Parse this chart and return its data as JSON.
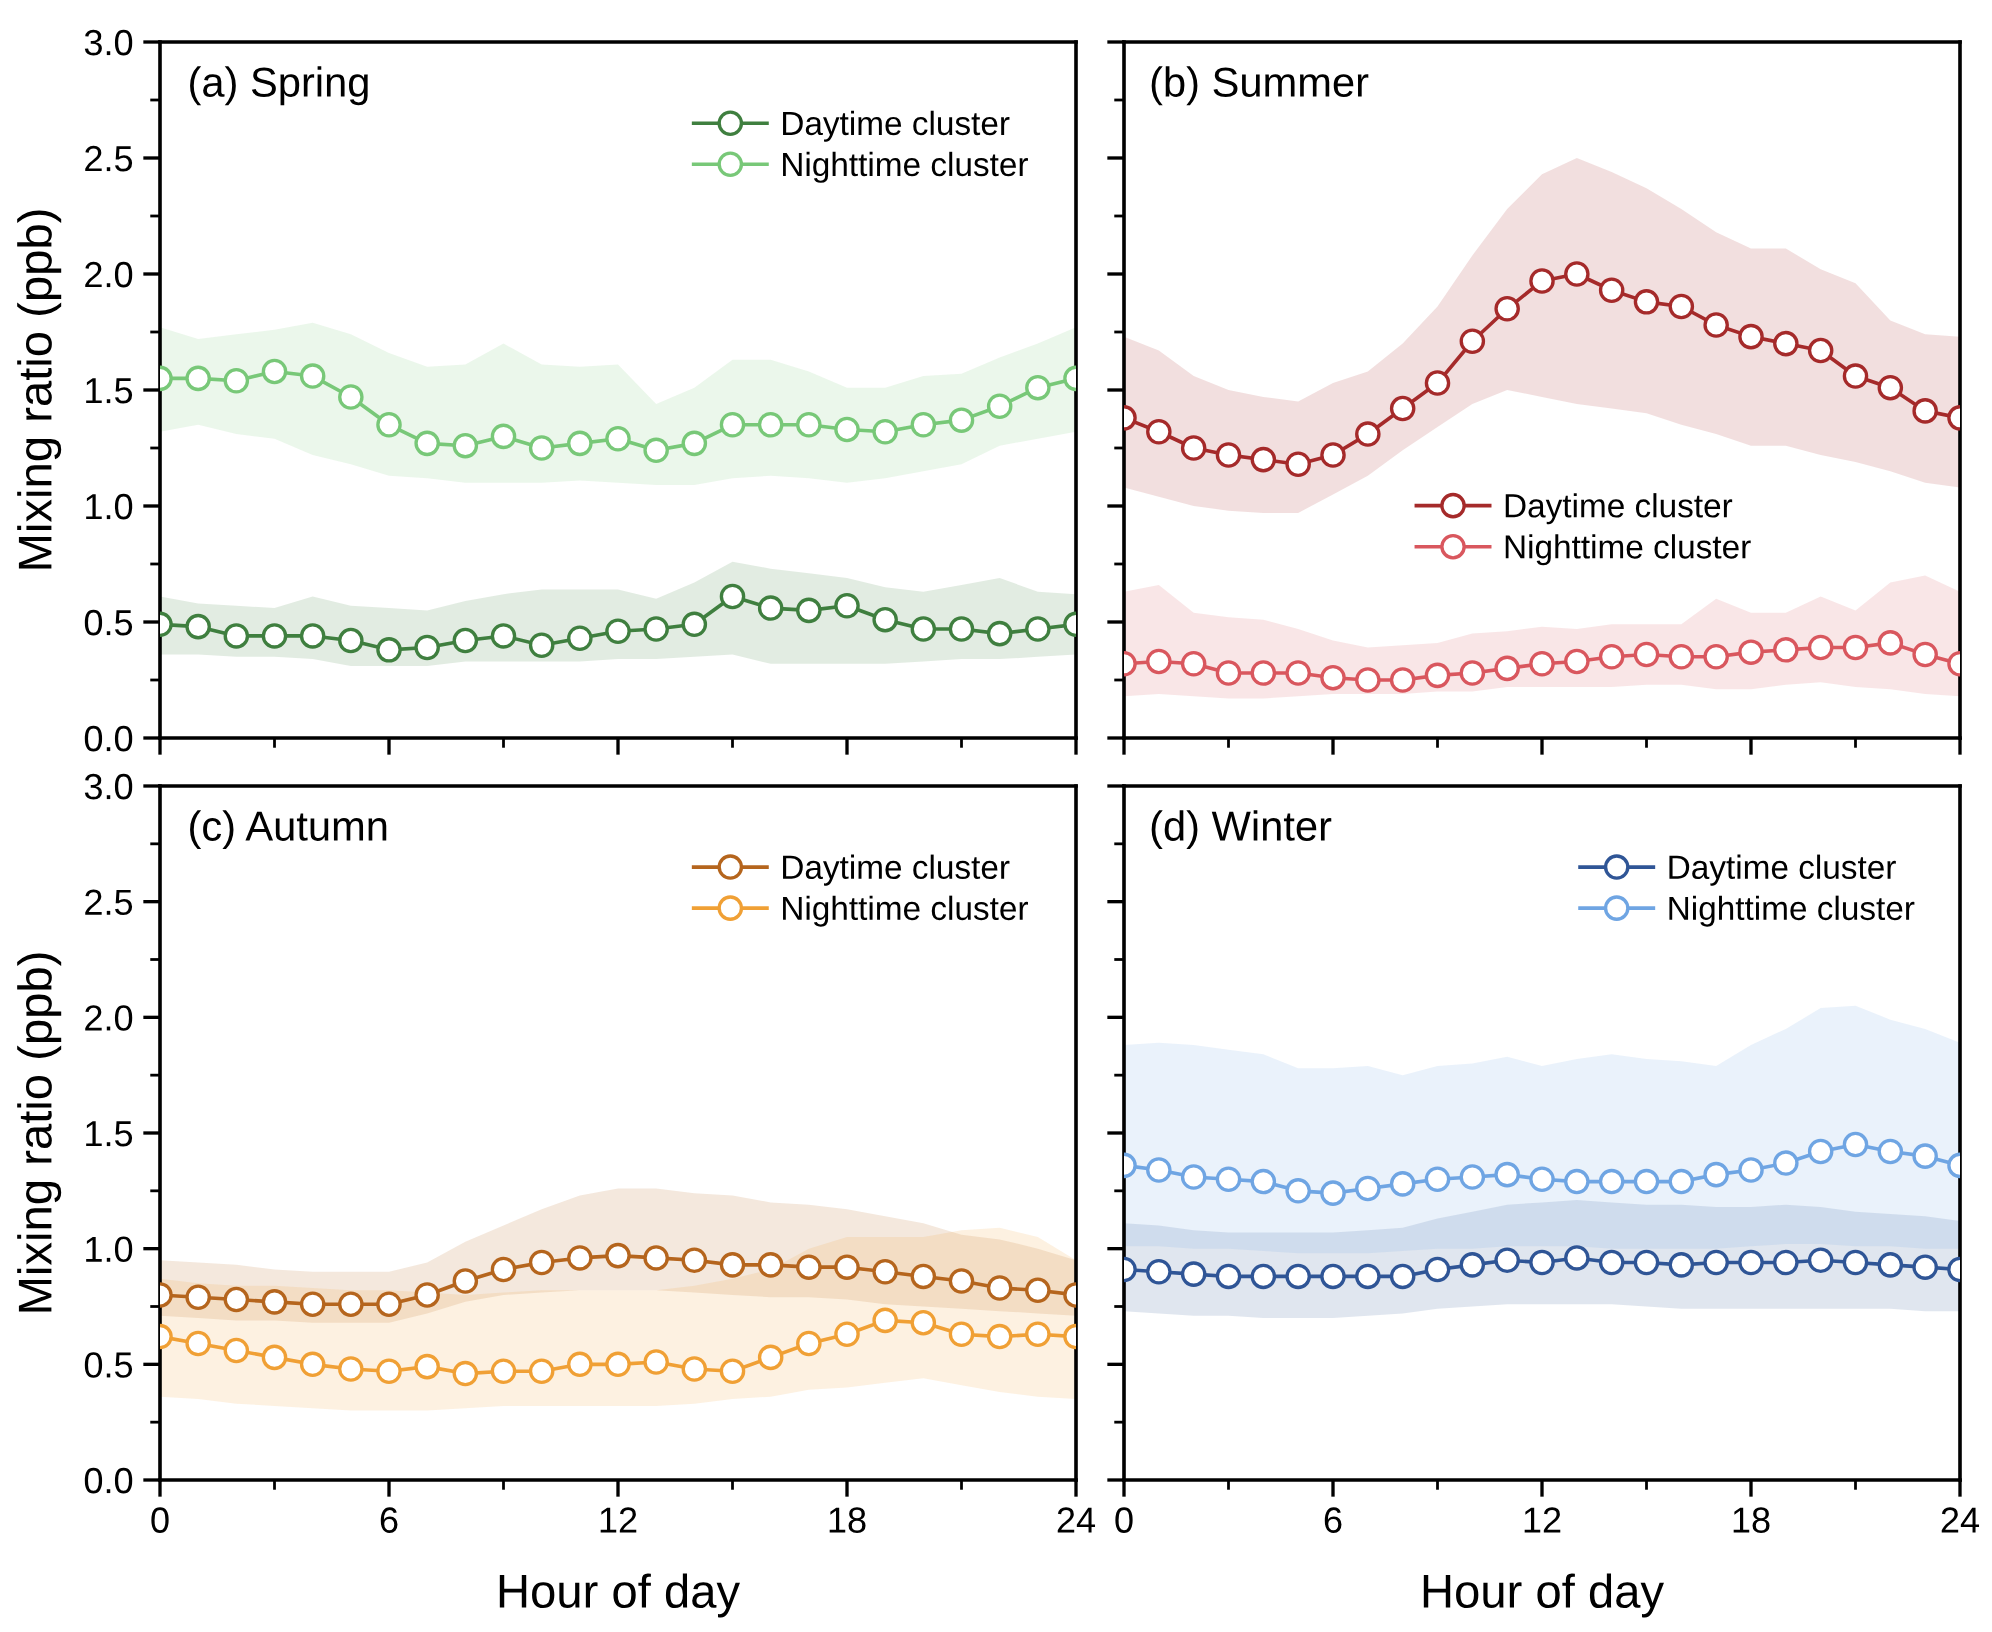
{
  "chart_data": [
    {
      "type": "line",
      "title": "(a) Spring",
      "ylabel": "Mixing ratio (ppb)",
      "xlim": [
        0,
        24
      ],
      "xticks": [
        0,
        6,
        12,
        18,
        24
      ],
      "ylim": [
        0,
        3
      ],
      "yticks": [
        {
          "value": 0,
          "label": "0.0"
        },
        {
          "value": 0.5,
          "label": "0.5"
        },
        {
          "value": 1,
          "label": "1.0"
        },
        {
          "value": 1.5,
          "label": "1.5"
        },
        {
          "value": 2,
          "label": "2.0"
        },
        {
          "value": 2.5,
          "label": "2.5"
        },
        {
          "value": 3,
          "label": "3.0"
        }
      ],
      "tick_labels": "y",
      "marker": "circle",
      "legend": "top right",
      "x": [
        0,
        1,
        2,
        3,
        4,
        5,
        6,
        7,
        8,
        9,
        10,
        11,
        12,
        13,
        14,
        15,
        16,
        17,
        18,
        19,
        20,
        21,
        22,
        23,
        24
      ],
      "series": [
        {
          "name": "Daytime cluster",
          "color": "#3f7f3f",
          "values": [
            0.49,
            0.48,
            0.44,
            0.44,
            0.44,
            0.42,
            0.38,
            0.39,
            0.42,
            0.44,
            0.4,
            0.43,
            0.46,
            0.47,
            0.49,
            0.61,
            0.56,
            0.55,
            0.57,
            0.51,
            0.47,
            0.47,
            0.45,
            0.47,
            0.49
          ],
          "upper": [
            0.61,
            0.58,
            0.57,
            0.56,
            0.61,
            0.57,
            0.56,
            0.55,
            0.59,
            0.62,
            0.64,
            0.64,
            0.64,
            0.6,
            0.67,
            0.76,
            0.73,
            0.71,
            0.69,
            0.65,
            0.63,
            0.66,
            0.69,
            0.63,
            0.62
          ],
          "lower": [
            0.36,
            0.36,
            0.35,
            0.35,
            0.34,
            0.31,
            0.31,
            0.31,
            0.33,
            0.33,
            0.33,
            0.33,
            0.34,
            0.34,
            0.35,
            0.36,
            0.32,
            0.32,
            0.32,
            0.32,
            0.33,
            0.34,
            0.34,
            0.35,
            0.36
          ]
        },
        {
          "name": "Nighttime cluster",
          "color": "#78c878",
          "values": [
            1.55,
            1.55,
            1.54,
            1.58,
            1.56,
            1.47,
            1.35,
            1.27,
            1.26,
            1.3,
            1.25,
            1.27,
            1.29,
            1.24,
            1.27,
            1.35,
            1.35,
            1.35,
            1.33,
            1.32,
            1.35,
            1.37,
            1.43,
            1.51,
            1.55
          ],
          "upper": [
            1.77,
            1.72,
            1.74,
            1.76,
            1.79,
            1.74,
            1.66,
            1.6,
            1.61,
            1.7,
            1.61,
            1.6,
            1.61,
            1.44,
            1.51,
            1.63,
            1.63,
            1.58,
            1.51,
            1.51,
            1.56,
            1.57,
            1.64,
            1.7,
            1.77
          ],
          "lower": [
            1.32,
            1.35,
            1.31,
            1.29,
            1.22,
            1.18,
            1.13,
            1.12,
            1.1,
            1.1,
            1.1,
            1.11,
            1.1,
            1.09,
            1.09,
            1.12,
            1.13,
            1.12,
            1.1,
            1.12,
            1.15,
            1.18,
            1.26,
            1.29,
            1.32
          ]
        }
      ]
    },
    {
      "type": "line",
      "title": "(b) Summer",
      "xlim": [
        0,
        24
      ],
      "xticks": [
        0,
        6,
        12,
        18,
        24
      ],
      "ylim": [
        0,
        3
      ],
      "yticks": [
        0,
        0.5,
        1,
        1.5,
        2,
        2.5,
        3
      ],
      "tick_labels": false,
      "marker": "circle",
      "legend": "center",
      "x": [
        0,
        1,
        2,
        3,
        4,
        5,
        6,
        7,
        8,
        9,
        10,
        11,
        12,
        13,
        14,
        15,
        16,
        17,
        18,
        19,
        20,
        21,
        22,
        23,
        24
      ],
      "series": [
        {
          "name": "Daytime cluster",
          "color": "#a52a2a",
          "values": [
            1.38,
            1.32,
            1.25,
            1.22,
            1.2,
            1.18,
            1.22,
            1.31,
            1.42,
            1.53,
            1.71,
            1.85,
            1.97,
            2.0,
            1.93,
            1.88,
            1.86,
            1.78,
            1.73,
            1.7,
            1.67,
            1.56,
            1.51,
            1.41,
            1.38
          ],
          "upper": [
            1.73,
            1.67,
            1.56,
            1.5,
            1.47,
            1.45,
            1.53,
            1.58,
            1.7,
            1.86,
            2.08,
            2.28,
            2.43,
            2.5,
            2.44,
            2.37,
            2.28,
            2.18,
            2.11,
            2.11,
            2.02,
            1.96,
            1.8,
            1.74,
            1.73
          ],
          "lower": [
            1.08,
            1.04,
            1.0,
            0.98,
            0.97,
            0.97,
            1.05,
            1.13,
            1.24,
            1.34,
            1.44,
            1.5,
            1.47,
            1.44,
            1.42,
            1.4,
            1.35,
            1.31,
            1.26,
            1.26,
            1.22,
            1.19,
            1.15,
            1.1,
            1.08
          ]
        },
        {
          "name": "Nighttime cluster",
          "color": "#d9575e",
          "values": [
            0.32,
            0.33,
            0.32,
            0.28,
            0.28,
            0.28,
            0.26,
            0.25,
            0.25,
            0.27,
            0.28,
            0.3,
            0.32,
            0.33,
            0.35,
            0.36,
            0.35,
            0.35,
            0.37,
            0.38,
            0.39,
            0.39,
            0.41,
            0.36,
            0.32
          ],
          "upper": [
            0.63,
            0.66,
            0.54,
            0.52,
            0.51,
            0.47,
            0.42,
            0.39,
            0.4,
            0.41,
            0.45,
            0.46,
            0.48,
            0.47,
            0.49,
            0.49,
            0.49,
            0.6,
            0.54,
            0.54,
            0.61,
            0.55,
            0.67,
            0.7,
            0.63
          ],
          "lower": [
            0.18,
            0.19,
            0.18,
            0.17,
            0.17,
            0.18,
            0.19,
            0.19,
            0.19,
            0.2,
            0.2,
            0.22,
            0.22,
            0.22,
            0.22,
            0.23,
            0.23,
            0.21,
            0.21,
            0.23,
            0.24,
            0.22,
            0.21,
            0.19,
            0.18
          ]
        }
      ]
    },
    {
      "type": "line",
      "title": "(c) Autumn",
      "xlabel": "Hour of day",
      "ylabel": "Mixing ratio (ppb)",
      "xlim": [
        0,
        24
      ],
      "xticks": [
        0,
        6,
        12,
        18,
        24
      ],
      "ylim": [
        0,
        3
      ],
      "yticks": [
        {
          "value": 0,
          "label": "0.0"
        },
        {
          "value": 0.5,
          "label": "0.5"
        },
        {
          "value": 1,
          "label": "1.0"
        },
        {
          "value": 1.5,
          "label": "1.5"
        },
        {
          "value": 2,
          "label": "2.0"
        },
        {
          "value": 2.5,
          "label": "2.5"
        },
        {
          "value": 3,
          "label": "3.0"
        }
      ],
      "marker": "circle",
      "legend": "top right",
      "x": [
        0,
        1,
        2,
        3,
        4,
        5,
        6,
        7,
        8,
        9,
        10,
        11,
        12,
        13,
        14,
        15,
        16,
        17,
        18,
        19,
        20,
        21,
        22,
        23,
        24
      ],
      "series": [
        {
          "name": "Daytime cluster",
          "color": "#b5651d",
          "values": [
            0.8,
            0.79,
            0.78,
            0.77,
            0.76,
            0.76,
            0.76,
            0.8,
            0.86,
            0.91,
            0.94,
            0.96,
            0.97,
            0.96,
            0.95,
            0.93,
            0.93,
            0.92,
            0.92,
            0.9,
            0.88,
            0.86,
            0.83,
            0.82,
            0.8
          ],
          "upper": [
            0.95,
            0.94,
            0.93,
            0.91,
            0.9,
            0.9,
            0.9,
            0.94,
            1.03,
            1.1,
            1.17,
            1.23,
            1.26,
            1.26,
            1.24,
            1.23,
            1.2,
            1.19,
            1.17,
            1.14,
            1.11,
            1.06,
            1.04,
            1.0,
            0.95
          ],
          "lower": [
            0.71,
            0.7,
            0.69,
            0.69,
            0.68,
            0.68,
            0.68,
            0.72,
            0.77,
            0.8,
            0.81,
            0.82,
            0.82,
            0.82,
            0.81,
            0.8,
            0.79,
            0.79,
            0.78,
            0.76,
            0.75,
            0.74,
            0.73,
            0.72,
            0.71
          ]
        },
        {
          "name": "Nighttime cluster",
          "color": "#f0a035",
          "values": [
            0.62,
            0.59,
            0.56,
            0.53,
            0.5,
            0.48,
            0.47,
            0.49,
            0.46,
            0.47,
            0.47,
            0.5,
            0.5,
            0.51,
            0.48,
            0.47,
            0.53,
            0.59,
            0.63,
            0.69,
            0.68,
            0.63,
            0.62,
            0.63,
            0.62
          ],
          "upper": [
            0.87,
            0.85,
            0.84,
            0.84,
            0.83,
            0.82,
            0.82,
            0.81,
            0.8,
            0.81,
            0.82,
            0.82,
            0.82,
            0.82,
            0.84,
            0.87,
            0.91,
            1.0,
            1.05,
            1.05,
            1.05,
            1.08,
            1.09,
            1.05,
            0.95
          ],
          "lower": [
            0.36,
            0.35,
            0.33,
            0.32,
            0.31,
            0.3,
            0.3,
            0.3,
            0.31,
            0.32,
            0.32,
            0.32,
            0.32,
            0.32,
            0.33,
            0.35,
            0.36,
            0.39,
            0.4,
            0.42,
            0.44,
            0.41,
            0.38,
            0.36,
            0.35
          ]
        }
      ]
    },
    {
      "type": "line",
      "title": "(d) Winter",
      "xlabel": "Hour of day",
      "xlim": [
        0,
        24
      ],
      "xticks": [
        0,
        6,
        12,
        18,
        24
      ],
      "ylim": [
        0,
        3
      ],
      "yticks": [
        0,
        0.5,
        1,
        1.5,
        2,
        2.5,
        3
      ],
      "tick_labels": "x",
      "marker": "circle",
      "legend": "top right",
      "x": [
        0,
        1,
        2,
        3,
        4,
        5,
        6,
        7,
        8,
        9,
        10,
        11,
        12,
        13,
        14,
        15,
        16,
        17,
        18,
        19,
        20,
        21,
        22,
        23,
        24
      ],
      "series": [
        {
          "name": "Daytime cluster",
          "color": "#2f5596",
          "values": [
            0.91,
            0.9,
            0.89,
            0.88,
            0.88,
            0.88,
            0.88,
            0.88,
            0.88,
            0.91,
            0.93,
            0.95,
            0.94,
            0.96,
            0.94,
            0.94,
            0.93,
            0.94,
            0.94,
            0.94,
            0.95,
            0.94,
            0.93,
            0.92,
            0.91
          ],
          "upper": [
            1.11,
            1.1,
            1.08,
            1.07,
            1.07,
            1.07,
            1.07,
            1.08,
            1.09,
            1.13,
            1.16,
            1.19,
            1.2,
            1.21,
            1.2,
            1.19,
            1.19,
            1.18,
            1.18,
            1.19,
            1.18,
            1.16,
            1.15,
            1.14,
            1.12
          ],
          "lower": [
            0.73,
            0.72,
            0.71,
            0.71,
            0.7,
            0.7,
            0.7,
            0.71,
            0.72,
            0.74,
            0.75,
            0.76,
            0.76,
            0.76,
            0.76,
            0.75,
            0.74,
            0.74,
            0.74,
            0.74,
            0.74,
            0.74,
            0.74,
            0.73,
            0.73
          ]
        },
        {
          "name": "Nighttime cluster",
          "color": "#6fa5e3",
          "values": [
            1.36,
            1.34,
            1.31,
            1.3,
            1.29,
            1.25,
            1.24,
            1.26,
            1.28,
            1.3,
            1.31,
            1.32,
            1.3,
            1.29,
            1.29,
            1.29,
            1.29,
            1.32,
            1.34,
            1.37,
            1.42,
            1.45,
            1.42,
            1.4,
            1.36
          ],
          "upper": [
            1.88,
            1.89,
            1.88,
            1.86,
            1.84,
            1.78,
            1.78,
            1.79,
            1.75,
            1.79,
            1.8,
            1.83,
            1.79,
            1.82,
            1.84,
            1.82,
            1.81,
            1.79,
            1.88,
            1.95,
            2.04,
            2.05,
            1.99,
            1.95,
            1.89
          ],
          "lower": [
            1.01,
            1.01,
            1.0,
            1.0,
            0.99,
            0.98,
            0.98,
            0.98,
            0.99,
            1.0,
            1.0,
            1.01,
            1.01,
            1.01,
            1.0,
            1.0,
            1.0,
            1.0,
            1.01,
            1.02,
            1.02,
            1.01,
            1.01,
            1.0,
            1.0
          ]
        }
      ]
    }
  ]
}
